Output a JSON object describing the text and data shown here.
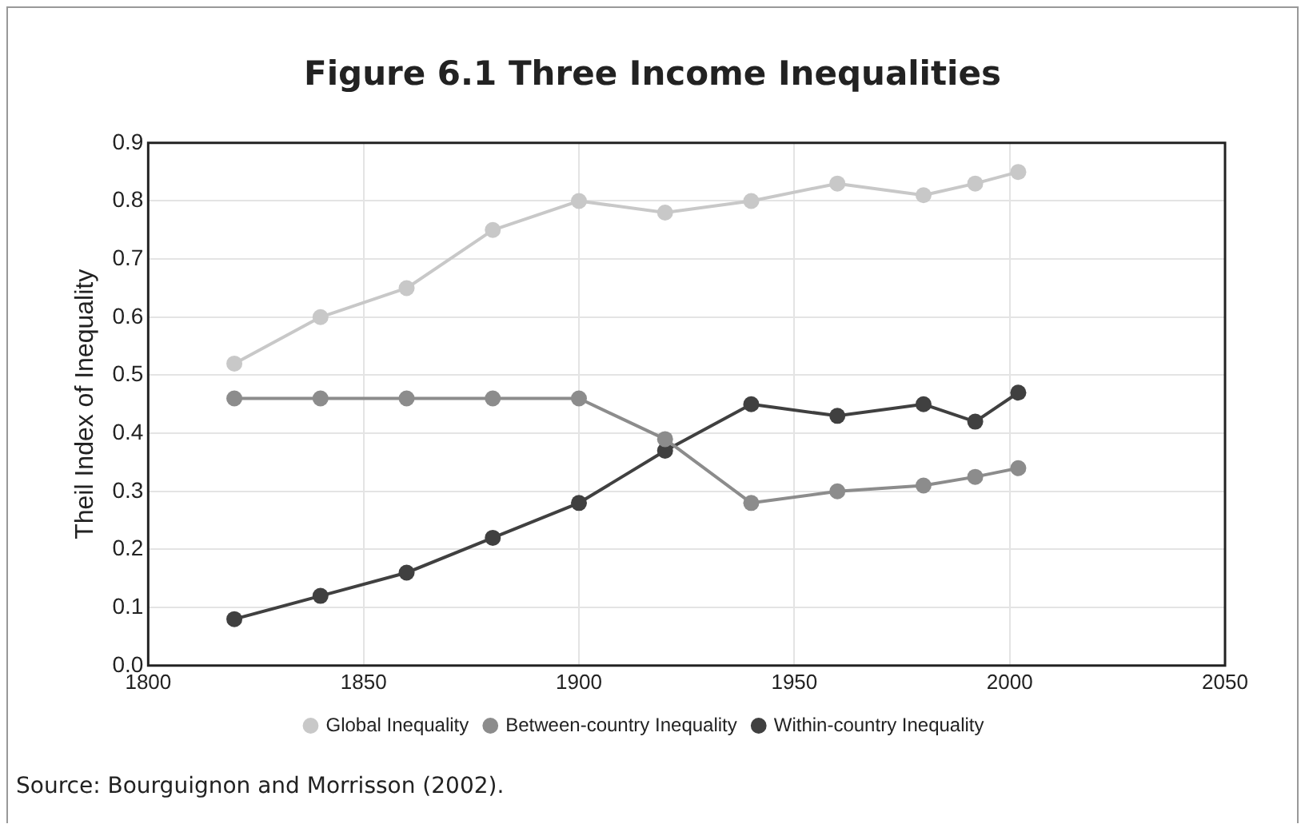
{
  "chart_data": {
    "type": "line",
    "title": "Figure 6.1  Three Income Inequalities",
    "ylabel": "Theil Index of Inequality",
    "x": [
      1820,
      1840,
      1860,
      1880,
      1900,
      1920,
      1940,
      1960,
      1980,
      1992,
      2002
    ],
    "series": [
      {
        "name": "Global Inequality",
        "color": "#c8c8c8",
        "values": [
          0.52,
          0.6,
          0.65,
          0.75,
          0.8,
          0.78,
          0.8,
          0.83,
          0.81,
          0.83,
          0.85
        ]
      },
      {
        "name": "Between-country Inequality",
        "color": "#8c8c8c",
        "values": [
          0.46,
          0.46,
          0.46,
          0.46,
          0.46,
          0.39,
          0.28,
          0.3,
          0.31,
          0.325,
          0.34
        ]
      },
      {
        "name": "Within-country Inequality",
        "color": "#404040",
        "values": [
          0.08,
          0.12,
          0.16,
          0.22,
          0.28,
          0.37,
          0.45,
          0.43,
          0.45,
          0.42,
          0.47
        ]
      }
    ],
    "xlim": [
      1800,
      2050
    ],
    "xticks": [
      1800,
      1850,
      1900,
      1950,
      2000,
      2050
    ],
    "ylim": [
      0,
      0.9
    ],
    "yticks": [
      {
        "value": 0,
        "label": "0.0"
      },
      {
        "value": 0.1,
        "label": "0.1"
      },
      {
        "value": 0.2,
        "label": "0.2"
      },
      {
        "value": 0.3,
        "label": "0.3"
      },
      {
        "value": 0.4,
        "label": "0.4"
      },
      {
        "value": 0.5,
        "label": "0.5"
      },
      {
        "value": 0.6,
        "label": "0.6"
      },
      {
        "value": 0.7,
        "label": "0.7"
      },
      {
        "value": 0.8,
        "label": "0.8"
      },
      {
        "value": 0.9,
        "label": "0.9"
      }
    ],
    "grid": true,
    "legend": "bottom",
    "marker": "circle",
    "line_style": "solid",
    "annotations": [
      "Source: Bourguignon and Morrisson (2002)."
    ]
  }
}
